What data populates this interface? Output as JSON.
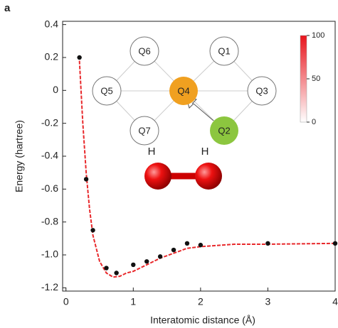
{
  "chart_data": {
    "type": "line",
    "panel_label": "a",
    "x_label": "Interatomic distance (Å)",
    "y_label": "Energy (hartree)",
    "xlim": [
      -0.05,
      4.0
    ],
    "ylim": [
      -1.22,
      0.42
    ],
    "xticks": [
      0,
      1,
      2,
      3,
      4
    ],
    "yticks": [
      {
        "value": 0.4,
        "label": "0.4"
      },
      {
        "value": 0.2,
        "label": "0.2"
      },
      0,
      -0.2,
      -0.4,
      -0.6,
      -0.8,
      {
        "value": -1,
        "label": "-1.0"
      },
      {
        "value": -1.2,
        "label": "-1.2"
      }
    ],
    "series": [
      {
        "color": "#e8282b",
        "style": "line",
        "x": [
          0.2,
          0.25,
          0.3,
          0.35,
          0.4,
          0.5,
          0.6,
          0.7,
          0.8,
          0.9,
          1.0,
          1.2,
          1.4,
          1.6,
          1.8,
          2.0,
          2.5,
          3.0,
          4.0
        ],
        "values": [
          0.18,
          -0.2,
          -0.5,
          -0.72,
          -0.88,
          -1.04,
          -1.11,
          -1.135,
          -1.13,
          -1.11,
          -1.1,
          -1.06,
          -1.02,
          -0.99,
          -0.96,
          -0.95,
          -0.935,
          -0.935,
          -0.93
        ]
      },
      {
        "color": "#111111",
        "style": "dots",
        "x": [
          0.2,
          0.3,
          0.4,
          0.6,
          0.75,
          1.0,
          1.2,
          1.4,
          1.6,
          1.8,
          2.0,
          3.0,
          4.0
        ],
        "values": [
          0.2,
          -0.54,
          -0.85,
          -1.08,
          -1.11,
          -1.06,
          -1.04,
          -1.01,
          -0.97,
          -0.93,
          -0.94,
          -0.93,
          -0.93
        ]
      }
    ],
    "inset": {
      "qubits": [
        "Q6",
        "Q1",
        "Q5",
        "Q4",
        "Q3",
        "Q7",
        "Q2"
      ],
      "atoms": [
        "H",
        "H"
      ],
      "colorbar_ticks": [
        100,
        50,
        0
      ],
      "colorbar_lim": [
        0,
        100
      ]
    }
  }
}
